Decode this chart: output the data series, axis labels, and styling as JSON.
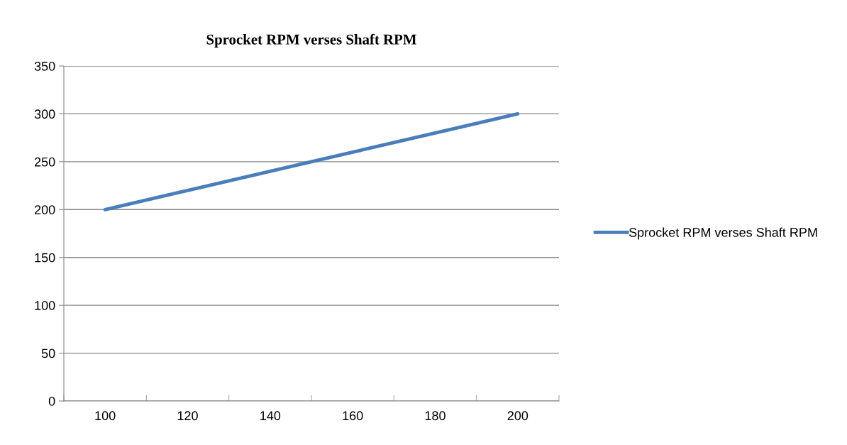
{
  "chart_data": {
    "type": "line",
    "title": "Sprocket RPM verses Shaft RPM",
    "categories": [
      "100",
      "120",
      "140",
      "160",
      "180",
      "200"
    ],
    "series": [
      {
        "name": "Sprocket RPM verses Shaft RPM",
        "color": "#4a7ebb",
        "values": [
          200,
          220,
          240,
          260,
          280,
          300
        ]
      }
    ],
    "ylim": [
      0,
      350
    ],
    "yticks": [
      0,
      50,
      100,
      150,
      200,
      250,
      300,
      350
    ],
    "grid": "y",
    "legend": "right",
    "marker": "none",
    "line_style": "solid"
  }
}
